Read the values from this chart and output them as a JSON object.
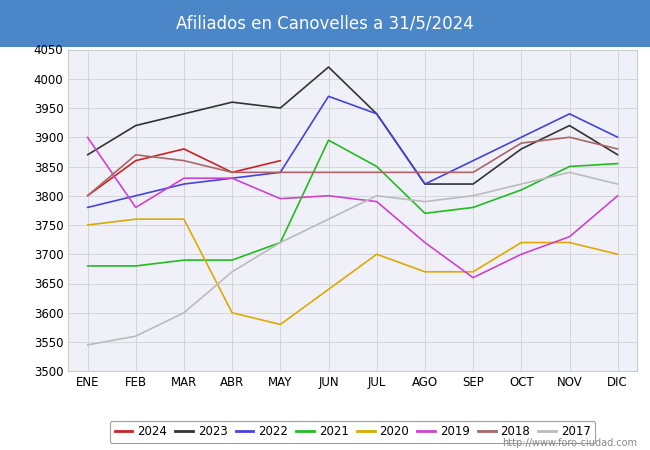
{
  "title": "Afiliados en Canovelles a 31/5/2024",
  "title_bg_color": "#4a86c8",
  "title_text_color": "white",
  "months": [
    "ENE",
    "FEB",
    "MAR",
    "ABR",
    "MAY",
    "JUN",
    "JUL",
    "AGO",
    "SEP",
    "OCT",
    "NOV",
    "DIC"
  ],
  "ylim": [
    3500,
    4050
  ],
  "yticks": [
    3500,
    3550,
    3600,
    3650,
    3700,
    3750,
    3800,
    3850,
    3900,
    3950,
    4000,
    4050
  ],
  "series": {
    "2024": {
      "color": "#cc2222",
      "data": [
        3800,
        3860,
        3880,
        3840,
        3860,
        null,
        null,
        null,
        null,
        null,
        null,
        null
      ]
    },
    "2023": {
      "color": "#333333",
      "data": [
        3870,
        3920,
        3940,
        3960,
        3950,
        4020,
        3940,
        3820,
        3820,
        3880,
        3920,
        3870
      ]
    },
    "2022": {
      "color": "#4444dd",
      "data": [
        3780,
        3800,
        3820,
        3830,
        3840,
        3970,
        3940,
        3820,
        3860,
        3900,
        3940,
        3900
      ]
    },
    "2021": {
      "color": "#22bb22",
      "data": [
        3680,
        3680,
        3690,
        3690,
        3720,
        3895,
        3850,
        3770,
        3780,
        3810,
        3850,
        3855
      ]
    },
    "2020": {
      "color": "#ddaa00",
      "data": [
        3750,
        3760,
        3760,
        3600,
        3580,
        3640,
        3700,
        3670,
        3670,
        3720,
        3720,
        3700
      ]
    },
    "2019": {
      "color": "#cc44cc",
      "data": [
        3900,
        3780,
        3830,
        3830,
        3795,
        3800,
        3790,
        3720,
        3660,
        3700,
        3730,
        3800
      ]
    },
    "2018": {
      "color": "#aa6666",
      "data": [
        3800,
        3870,
        3860,
        3840,
        3840,
        3840,
        3840,
        3840,
        3840,
        3890,
        3900,
        3880
      ]
    },
    "2017": {
      "color": "#bbbbbb",
      "data": [
        3545,
        3560,
        3600,
        3670,
        3720,
        3760,
        3800,
        3790,
        3800,
        3820,
        3840,
        3820
      ]
    }
  },
  "legend_order": [
    "2024",
    "2023",
    "2022",
    "2021",
    "2020",
    "2019",
    "2018",
    "2017"
  ],
  "watermark": "http://www.foro-ciudad.com",
  "plot_bg_color": "#f0f0f8"
}
